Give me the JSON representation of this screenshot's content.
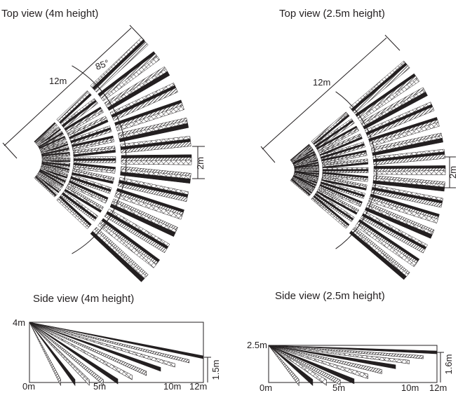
{
  "top_view_4m": {
    "title": "Top view (4m height)",
    "range_label": "12m",
    "angle_label": "85°",
    "width_label": "2m"
  },
  "top_view_2_5m": {
    "title": "Top view (2.5m height)",
    "range_label": "12m",
    "width_label": "2m"
  },
  "side_view_4m": {
    "title": "Side view (4m height)",
    "height_label": "4m",
    "end_height_label": "1.5m",
    "x_ticks": [
      "0m",
      "5m",
      "10m",
      "12m"
    ]
  },
  "side_view_2_5m": {
    "title": "Side view (2.5m height)",
    "height_label": "2.5m",
    "end_height_label": "1.6m",
    "x_ticks": [
      "0m",
      "5m",
      "10m",
      "12m"
    ]
  },
  "colors": {
    "ink": "#231f20",
    "background": "#ffffff"
  }
}
